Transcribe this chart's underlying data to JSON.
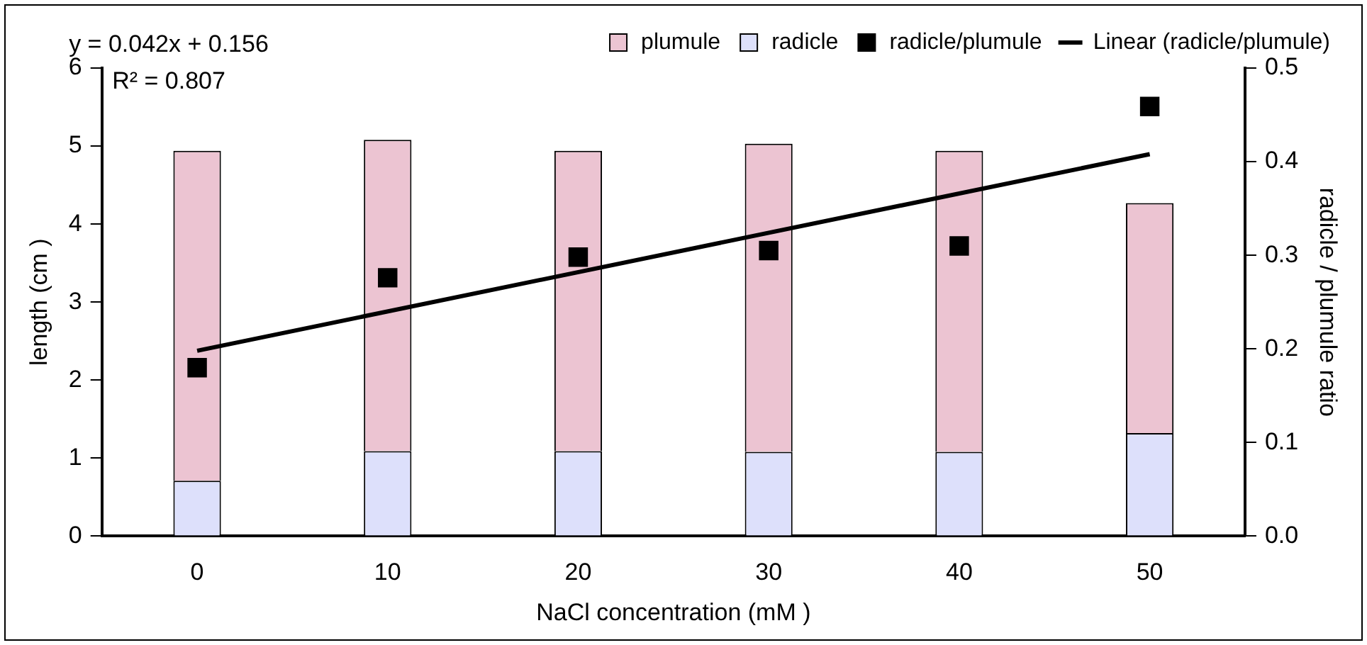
{
  "chart_data": {
    "type": "bar",
    "stacked": true,
    "xlabel": "NaCl concentration (mM )",
    "ylabel": "length (cm )",
    "y2label": "radicle / plumule ratio",
    "categories": [
      "0",
      "10",
      "20",
      "30",
      "40",
      "50"
    ],
    "series": [
      {
        "name": "radicle",
        "color": "#dde0fb",
        "values": [
          0.71,
          1.09,
          1.09,
          1.08,
          1.08,
          1.32
        ]
      },
      {
        "name": "plumule",
        "color": "#ecc4d2",
        "values": [
          4.23,
          3.99,
          3.85,
          3.95,
          3.86,
          2.95
        ]
      },
      {
        "name": "radicle/plumule",
        "type": "scatter",
        "axis": "y2",
        "marker": "square",
        "color": "#000000",
        "values": [
          0.18,
          0.276,
          0.298,
          0.305,
          0.31,
          0.459
        ]
      },
      {
        "name": "Linear (radicle/plumule)",
        "type": "line",
        "axis": "y2",
        "marker": "none",
        "color": "#000000",
        "x": [
          "0",
          "50"
        ],
        "values": [
          0.198,
          0.408
        ]
      }
    ],
    "ylim": [
      0,
      6
    ],
    "yticks": [
      0,
      1,
      2,
      3,
      4,
      5,
      6
    ],
    "y2lim": [
      0,
      0.5
    ],
    "y2ticks": [
      {
        "value": 0,
        "label": "0.0"
      },
      {
        "value": 0.1,
        "label": "0.1"
      },
      {
        "value": 0.2,
        "label": "0.2"
      },
      {
        "value": 0.3,
        "label": "0.3"
      },
      {
        "value": 0.4,
        "label": "0.4"
      },
      {
        "value": 0.5,
        "label": "0.5"
      }
    ],
    "annotations": [
      "y = 0.042x + 0.156",
      "R² = 0.807"
    ],
    "grid": false,
    "legend": "top"
  }
}
